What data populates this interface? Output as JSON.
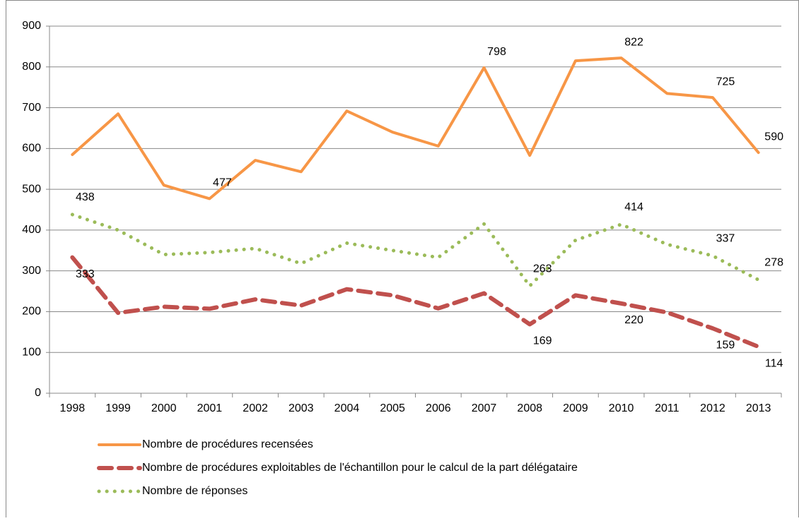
{
  "chart_data": {
    "type": "line",
    "categories": [
      "1998",
      "1999",
      "2000",
      "2001",
      "2002",
      "2003",
      "2004",
      "2005",
      "2006",
      "2007",
      "2008",
      "2009",
      "2010",
      "2011",
      "2012",
      "2013"
    ],
    "series": [
      {
        "name": "Nombre de procédures recensées",
        "color": "#f79646",
        "dash": "solid",
        "values": [
          585,
          685,
          510,
          477,
          571,
          543,
          692,
          640,
          606,
          798,
          583,
          815,
          822,
          735,
          725,
          590
        ],
        "value_labels": [
          null,
          null,
          null,
          "477",
          null,
          null,
          null,
          null,
          null,
          "798",
          null,
          null,
          "822",
          null,
          "725",
          "590"
        ]
      },
      {
        "name": "Nombre de procédures exploitables de l'échantillon pour le calcul de la part délégataire",
        "color": "#c0504d",
        "dash": "dashed",
        "values": [
          333,
          197,
          212,
          207,
          230,
          215,
          255,
          240,
          208,
          245,
          169,
          240,
          220,
          198,
          159,
          114
        ],
        "value_labels": [
          "333",
          null,
          null,
          null,
          null,
          null,
          null,
          null,
          null,
          null,
          "169",
          null,
          "220",
          null,
          "159",
          "114"
        ]
      },
      {
        "name": "Nombre de réponses",
        "color": "#9bbb59",
        "dash": "dotted",
        "values": [
          438,
          400,
          340,
          345,
          355,
          318,
          368,
          350,
          333,
          415,
          263,
          375,
          414,
          365,
          337,
          278
        ],
        "value_labels": [
          "438",
          null,
          null,
          null,
          null,
          null,
          null,
          null,
          null,
          null,
          "263",
          null,
          "414",
          null,
          "337",
          "278"
        ]
      }
    ],
    "ylim": [
      0,
      900
    ],
    "yticks": [
      0,
      100,
      200,
      300,
      400,
      500,
      600,
      700,
      800,
      900
    ],
    "grid": true,
    "legend": "bottom"
  }
}
